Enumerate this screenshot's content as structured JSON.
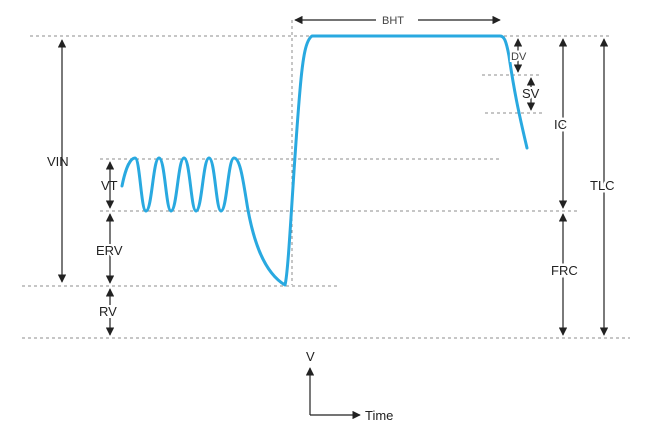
{
  "colors": {
    "trace": "#29a9e0",
    "ink": "#222222",
    "guide": "#8c8c8c"
  },
  "labels": {
    "bht": "BHT",
    "dv": "DV",
    "sv": "SV",
    "ic": "IC",
    "tlc": "TLC",
    "vin": "VIN",
    "vt": "VT",
    "erv": "ERV",
    "frc": "FRC",
    "rv": "RV"
  },
  "axes": {
    "y_label": "V",
    "x_label": "Time"
  }
}
